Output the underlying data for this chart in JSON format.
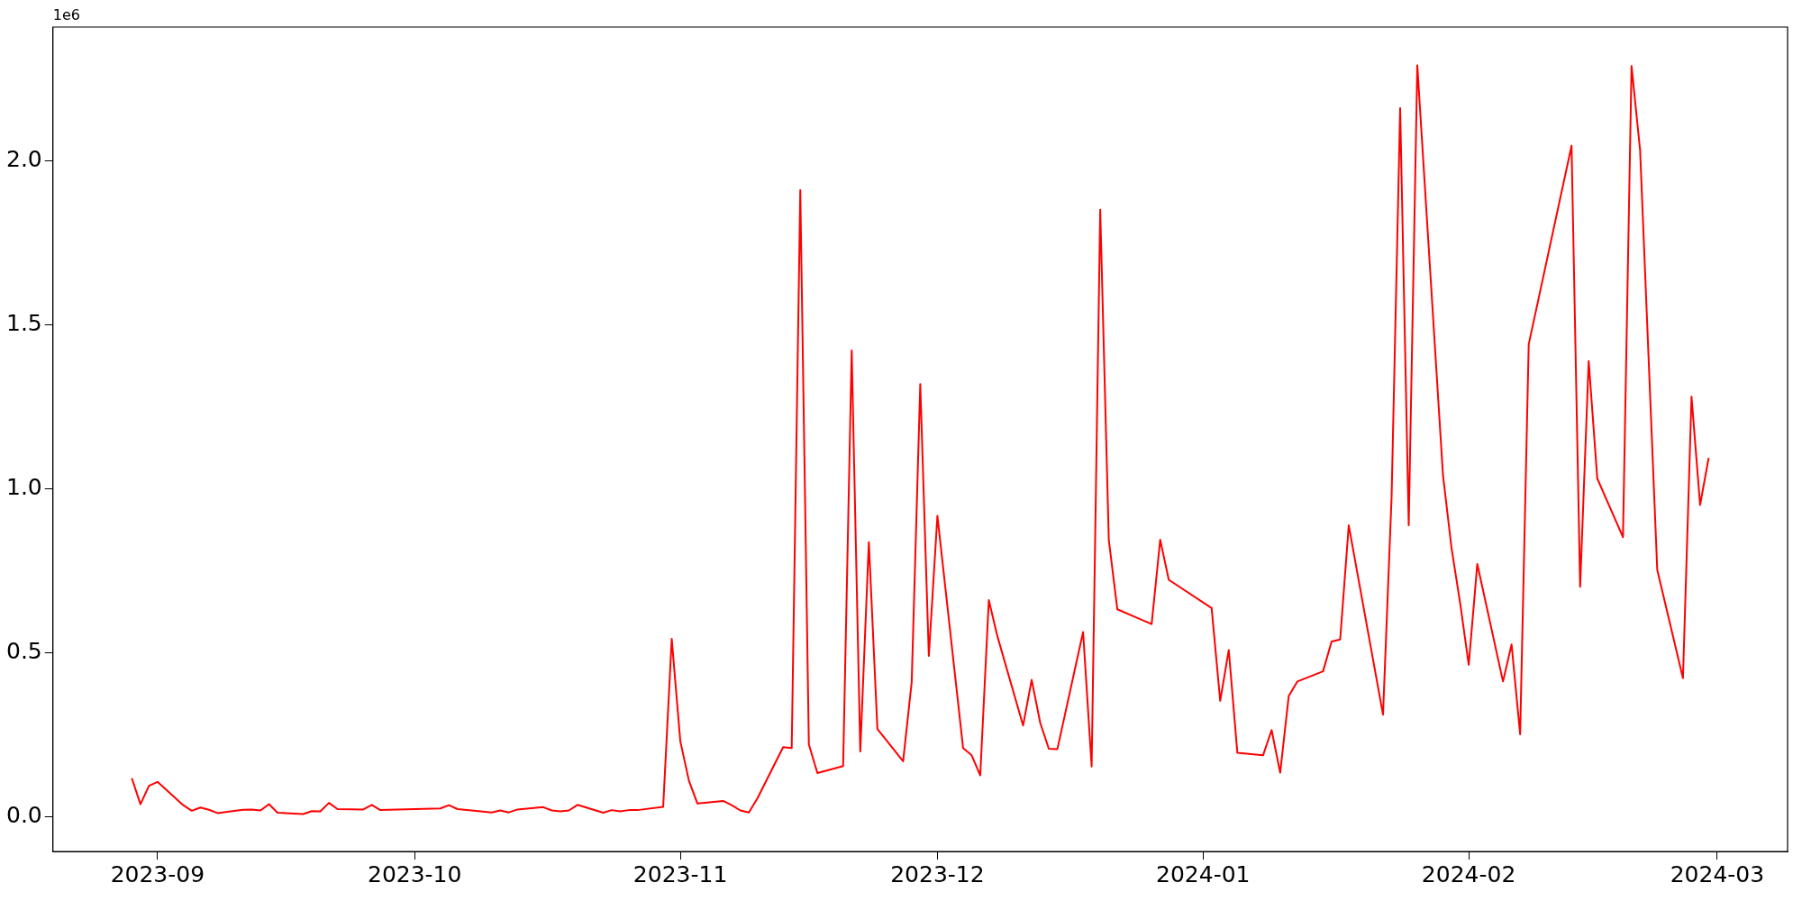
{
  "chart_data": {
    "type": "line",
    "x": [
      "2023-08-29",
      "2023-08-30",
      "2023-08-31",
      "2023-09-01",
      "2023-09-04",
      "2023-09-05",
      "2023-09-06",
      "2023-09-07",
      "2023-09-08",
      "2023-09-11",
      "2023-09-12",
      "2023-09-13",
      "2023-09-14",
      "2023-09-15",
      "2023-09-18",
      "2023-09-19",
      "2023-09-20",
      "2023-09-21",
      "2023-09-22",
      "2023-09-25",
      "2023-09-26",
      "2023-09-27",
      "2023-10-04",
      "2023-10-05",
      "2023-10-06",
      "2023-10-10",
      "2023-10-11",
      "2023-10-12",
      "2023-10-13",
      "2023-10-16",
      "2023-10-17",
      "2023-10-18",
      "2023-10-19",
      "2023-10-20",
      "2023-10-23",
      "2023-10-24",
      "2023-10-25",
      "2023-10-26",
      "2023-10-27",
      "2023-10-30",
      "2023-10-31",
      "2023-11-01",
      "2023-11-02",
      "2023-11-03",
      "2023-11-06",
      "2023-11-07",
      "2023-11-08",
      "2023-11-09",
      "2023-11-10",
      "2023-11-13",
      "2023-11-14",
      "2023-11-15",
      "2023-11-16",
      "2023-11-17",
      "2023-11-20",
      "2023-11-21",
      "2023-11-22",
      "2023-11-23",
      "2023-11-24",
      "2023-11-27",
      "2023-11-28",
      "2023-11-29",
      "2023-11-30",
      "2023-12-01",
      "2023-12-04",
      "2023-12-05",
      "2023-12-06",
      "2023-12-07",
      "2023-12-08",
      "2023-12-11",
      "2023-12-12",
      "2023-12-13",
      "2023-12-14",
      "2023-12-15",
      "2023-12-18",
      "2023-12-19",
      "2023-12-20",
      "2023-12-21",
      "2023-12-22",
      "2023-12-26",
      "2023-12-27",
      "2023-12-28",
      "2024-01-02",
      "2024-01-03",
      "2024-01-04",
      "2024-01-05",
      "2024-01-08",
      "2024-01-09",
      "2024-01-10",
      "2024-01-11",
      "2024-01-12",
      "2024-01-15",
      "2024-01-16",
      "2024-01-17",
      "2024-01-18",
      "2024-01-22",
      "2024-01-23",
      "2024-01-24",
      "2024-01-25",
      "2024-01-26",
      "2024-01-29",
      "2024-01-30",
      "2024-01-31",
      "2024-02-01",
      "2024-02-02",
      "2024-02-05",
      "2024-02-06",
      "2024-02-07",
      "2024-02-08",
      "2024-02-13",
      "2024-02-14",
      "2024-02-15",
      "2024-02-16",
      "2024-02-19",
      "2024-02-20",
      "2024-02-21",
      "2024-02-23",
      "2024-02-26",
      "2024-02-27",
      "2024-02-28",
      "2024-02-29"
    ],
    "series": [
      {
        "color": "#ff0000",
        "values": [
          0.117,
          0.038,
          0.094,
          0.106,
          0.035,
          0.018,
          0.028,
          0.021,
          0.011,
          0.021,
          0.022,
          0.019,
          0.038,
          0.012,
          0.008,
          0.017,
          0.016,
          0.042,
          0.023,
          0.022,
          0.036,
          0.02,
          0.025,
          0.035,
          0.023,
          0.013,
          0.019,
          0.013,
          0.022,
          0.029,
          0.019,
          0.016,
          0.019,
          0.036,
          0.012,
          0.02,
          0.016,
          0.02,
          0.02,
          0.03,
          0.542,
          0.23,
          0.11,
          0.04,
          0.048,
          0.035,
          0.019,
          0.013,
          0.056,
          0.212,
          0.209,
          1.91,
          0.22,
          0.133,
          0.154,
          1.421,
          0.199,
          0.837,
          0.267,
          0.169,
          0.41,
          1.319,
          0.49,
          0.917,
          0.209,
          0.187,
          0.126,
          0.66,
          0.55,
          0.278,
          0.417,
          0.286,
          0.207,
          0.206,
          0.563,
          0.153,
          1.85,
          0.844,
          0.632,
          0.587,
          0.844,
          0.722,
          0.636,
          0.353,
          0.508,
          0.195,
          0.187,
          0.264,
          0.134,
          0.368,
          0.412,
          0.443,
          0.534,
          0.54,
          0.888,
          0.311,
          0.974,
          2.16,
          0.888,
          2.29,
          1.04,
          0.818,
          0.651,
          0.463,
          0.77,
          0.412,
          0.525,
          0.251,
          1.44,
          2.045,
          0.701,
          1.389,
          1.031,
          0.852,
          2.288,
          2.031,
          0.752,
          0.422,
          1.28,
          0.95,
          1.094
        ]
      }
    ],
    "xlim": [
      "2023-08-19T19:00",
      "2024-03-09T05:00"
    ],
    "xticks": [
      "2023-09",
      "2023-10",
      "2023-11",
      "2023-12",
      "2024-01",
      "2024-02",
      "2024-03"
    ],
    "ylim": [
      -0.106,
      2.407
    ],
    "yticks": [
      {
        "value": 0,
        "label": "0.0"
      },
      0.5,
      {
        "value": 1,
        "label": "1.0"
      },
      1.5,
      {
        "value": 2,
        "label": "2.0"
      }
    ],
    "annotations": [
      "1e6"
    ],
    "grid": false,
    "legend": false,
    "marker": "none",
    "line_style": "solid"
  }
}
